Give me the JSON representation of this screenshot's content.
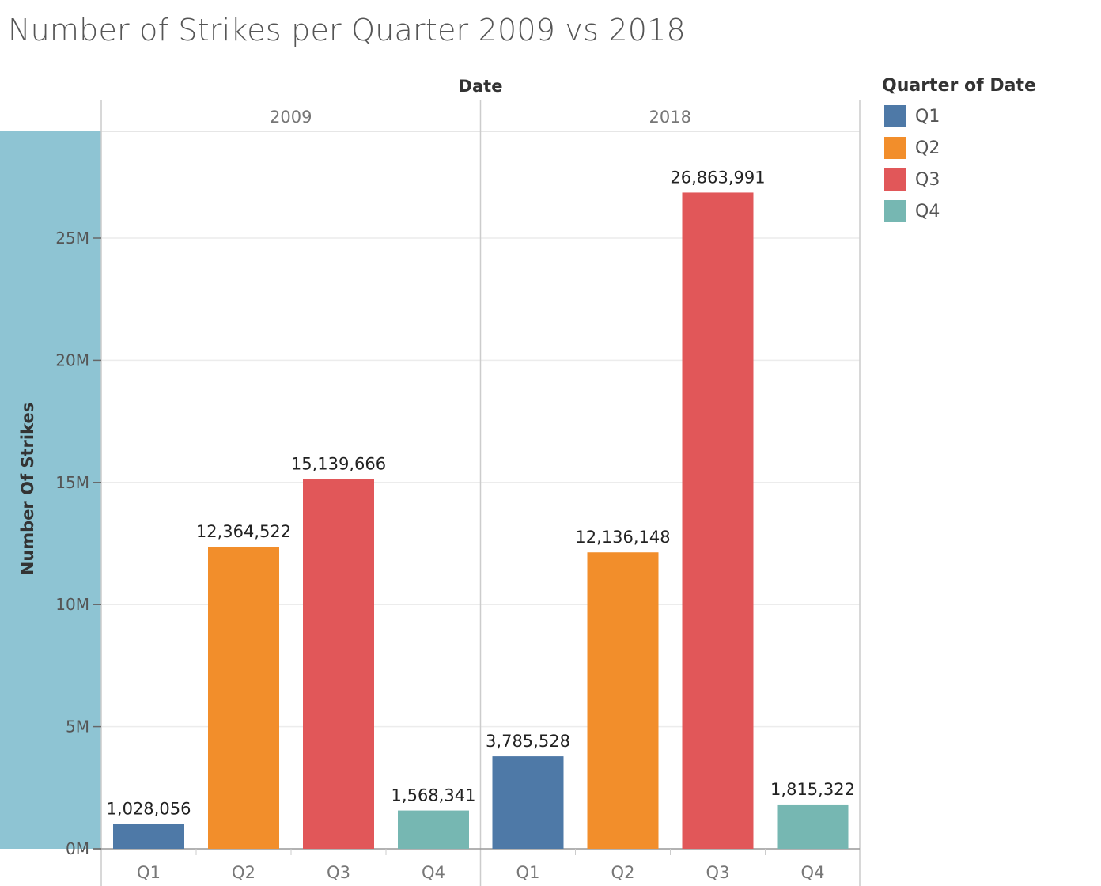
{
  "chart_data": {
    "type": "bar",
    "title": "Number of Strikes per Quarter 2009 vs 2018",
    "column_header": "Date",
    "ylabel": "Number Of Strikes",
    "ylim": [
      0,
      29000000
    ],
    "y_ticks": [
      0,
      5000000,
      10000000,
      15000000,
      20000000,
      25000000
    ],
    "y_tick_labels": [
      "0M",
      "5M",
      "10M",
      "15M",
      "20M",
      "25M"
    ],
    "categories": [
      "Q1",
      "Q2",
      "Q3",
      "Q4"
    ],
    "grid": true,
    "legend_position": "right",
    "legend": {
      "title": "Quarter of Date",
      "items": [
        {
          "label": "Q1",
          "color": "#4e79a7"
        },
        {
          "label": "Q2",
          "color": "#f28e2b"
        },
        {
          "label": "Q3",
          "color": "#e15759"
        },
        {
          "label": "Q4",
          "color": "#76b7b2"
        }
      ]
    },
    "panels": [
      {
        "header": "2009",
        "values": [
          1028056,
          12364522,
          15139666,
          1568341
        ],
        "value_labels": [
          "1,028,056",
          "12,364,522",
          "15,139,666",
          "1,568,341"
        ]
      },
      {
        "header": "2018",
        "values": [
          3785528,
          12136148,
          26863991,
          1815322
        ],
        "value_labels": [
          "3,785,528",
          "12,136,148",
          "26,863,991",
          "1,815,322"
        ]
      }
    ]
  },
  "colors": {
    "axis_band": "#8ec4d3",
    "gridline": "#ececec",
    "divider": "#cccccc"
  }
}
